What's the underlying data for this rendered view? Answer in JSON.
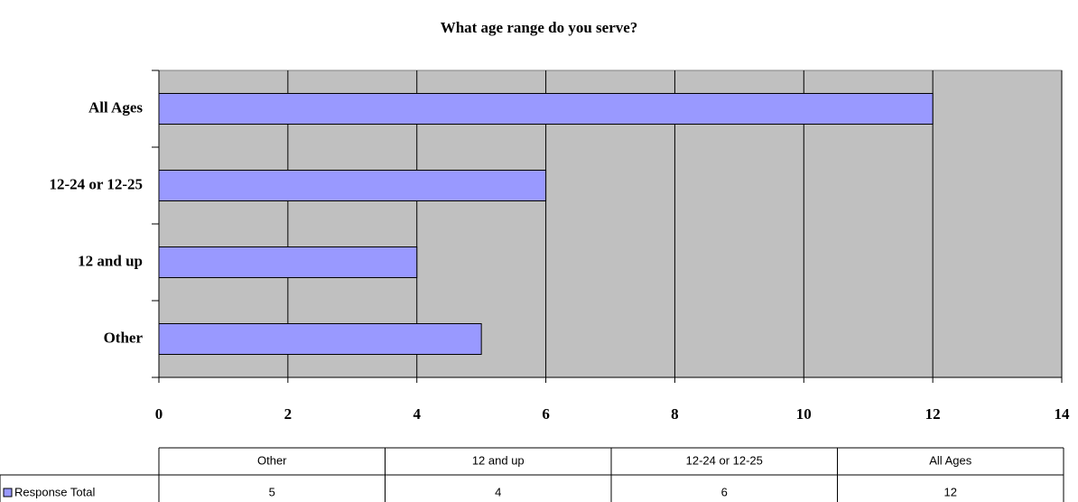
{
  "chart_data": {
    "type": "bar",
    "orientation": "horizontal",
    "title": "What age range do you serve?",
    "categories": [
      "Other",
      "12 and up",
      "12-24 or 12-25",
      "All Ages"
    ],
    "series": [
      {
        "name": "Response Total",
        "color": "#9999ff",
        "values": [
          5,
          4,
          6,
          12
        ]
      }
    ],
    "xlim": [
      0,
      14
    ],
    "xticks": [
      0,
      2,
      4,
      6,
      8,
      10,
      12,
      14
    ],
    "grid": true
  }
}
